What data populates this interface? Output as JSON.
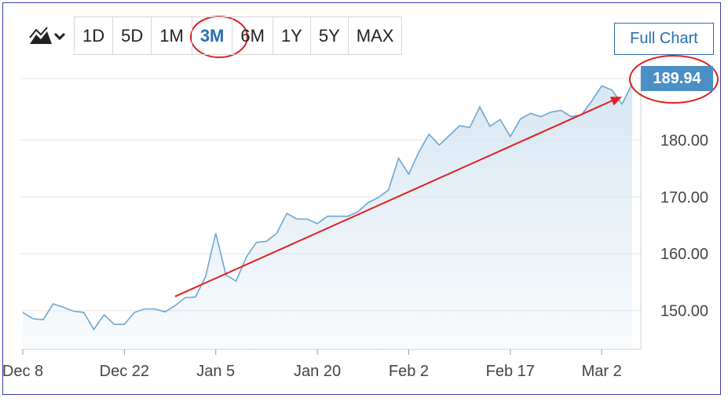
{
  "toolbar": {
    "chart_type_icon": "mountain-chart-icon",
    "ranges": [
      "1D",
      "5D",
      "1M",
      "3M",
      "6M",
      "1Y",
      "5Y",
      "MAX"
    ],
    "active_range": "3M",
    "full_chart_label": "Full Chart"
  },
  "current_price": "189.94",
  "colors": {
    "line": "#6ea6d2",
    "area": "#d6e6f2",
    "accent": "#2a6db5",
    "badge": "#4b8fc6",
    "annotation": "#e02020"
  },
  "chart_data": {
    "type": "area",
    "title": "",
    "xlabel": "",
    "ylabel": "",
    "y_ticks": [
      "150.00",
      "160.00",
      "170.00",
      "180.00"
    ],
    "x_ticks": [
      {
        "label": "Dec 8",
        "index": 0
      },
      {
        "label": "Dec 22",
        "index": 10
      },
      {
        "label": "Jan 5",
        "index": 19
      },
      {
        "label": "Jan 20",
        "index": 29
      },
      {
        "label": "Feb 2",
        "index": 38
      },
      {
        "label": "Feb 17",
        "index": 48
      },
      {
        "label": "Mar 2",
        "index": 57
      }
    ],
    "ylim": [
      143.2,
      190.8
    ],
    "values": [
      149.7,
      148.6,
      148.4,
      151.2,
      150.6,
      149.9,
      149.7,
      146.7,
      149.3,
      147.6,
      147.6,
      149.7,
      150.3,
      150.3,
      149.8,
      150.9,
      152.3,
      152.4,
      156.0,
      163.6,
      156.3,
      155.2,
      159.4,
      162.0,
      162.2,
      163.6,
      167.1,
      166.1,
      166.1,
      165.3,
      166.6,
      166.6,
      166.6,
      167.4,
      169.0,
      169.9,
      171.2,
      176.8,
      174.0,
      177.9,
      181.0,
      179.1,
      180.8,
      182.5,
      182.2,
      185.8,
      182.4,
      183.6,
      180.6,
      183.7,
      184.7,
      184.1,
      184.9,
      185.2,
      184.1,
      184.4,
      186.8,
      189.5,
      188.8,
      186.3,
      189.9
    ],
    "annotations": [
      {
        "type": "arrow",
        "from_index": 15,
        "from_value": 152.5,
        "to_index": 59,
        "to_value": 187.6
      },
      {
        "type": "circle",
        "target": "3M"
      },
      {
        "type": "circle",
        "target": "current_price"
      }
    ]
  }
}
